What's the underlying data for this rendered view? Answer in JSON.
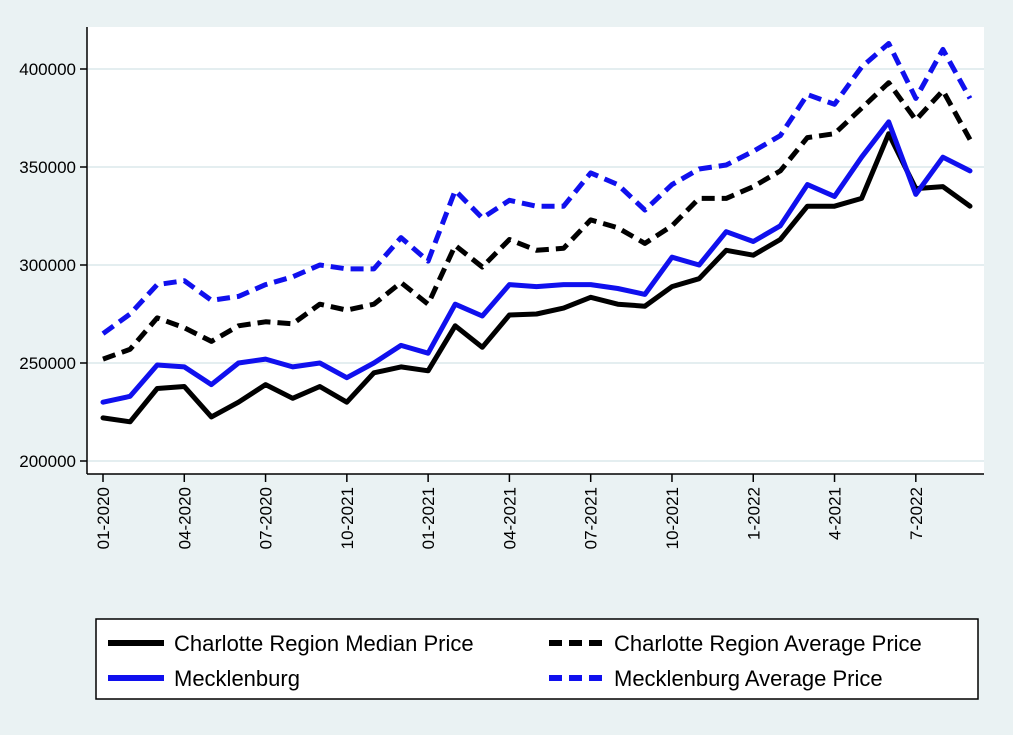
{
  "chart_data": {
    "type": "line",
    "title": "",
    "xlabel": "",
    "ylabel": "",
    "ylim": [
      195000,
      420000
    ],
    "yticks": [
      200000,
      250000,
      300000,
      350000,
      400000
    ],
    "ytick_labels": [
      "200000",
      "250000",
      "300000",
      "350000",
      "400000"
    ],
    "xtick_labels": [
      {
        "index": 0,
        "label": "01-2020"
      },
      {
        "index": 3,
        "label": "04-2020"
      },
      {
        "index": 6,
        "label": "07-2020"
      },
      {
        "index": 9,
        "label": "10-2021"
      },
      {
        "index": 12,
        "label": "01-2021"
      },
      {
        "index": 15,
        "label": "04-2021"
      },
      {
        "index": 18,
        "label": "07-2021"
      },
      {
        "index": 21,
        "label": "10-2021"
      },
      {
        "index": 24,
        "label": "1-2022"
      },
      {
        "index": 27,
        "label": "4-2021"
      },
      {
        "index": 30,
        "label": "7-2022"
      }
    ],
    "grid": true,
    "legend_position": "bottom",
    "series": [
      {
        "name": "Charlotte Region Median Price",
        "color": "#000000",
        "dash": "solid",
        "values": [
          222000,
          220000,
          237000,
          238000,
          222500,
          230000,
          239000,
          232000,
          238000,
          230000,
          245000,
          248000,
          246000,
          269000,
          258000,
          274500,
          275000,
          278000,
          283500,
          280000,
          279000,
          289000,
          293000,
          307500,
          305000,
          313000,
          330000,
          330000,
          334000,
          367000,
          339000,
          340000,
          330000
        ]
      },
      {
        "name": "Charlotte Region Average Price",
        "color": "#000000",
        "dash": "dashed",
        "values": [
          252000,
          257000,
          273000,
          268000,
          261000,
          269000,
          271000,
          270000,
          280000,
          277000,
          280000,
          291000,
          280000,
          310000,
          299000,
          313000,
          307500,
          308500,
          323000,
          319000,
          311000,
          320000,
          334000,
          334000,
          340000,
          348000,
          365000,
          367000,
          380000,
          393000,
          374000,
          389000,
          364000
        ]
      },
      {
        "name": "Mecklenburg",
        "color": "#1010ee",
        "dash": "solid",
        "values": [
          230000,
          233000,
          249000,
          248000,
          239000,
          250000,
          252000,
          248000,
          250000,
          242500,
          250000,
          259000,
          255000,
          280000,
          274000,
          290000,
          289000,
          290000,
          290000,
          288000,
          285000,
          304000,
          300000,
          317000,
          312000,
          320000,
          341000,
          335000,
          355000,
          373000,
          336000,
          355000,
          348000
        ]
      },
      {
        "name": "Mecklenburg Average Price",
        "color": "#1010ee",
        "dash": "dashed",
        "values": [
          265000,
          275000,
          290000,
          292000,
          282000,
          284000,
          290000,
          294000,
          300000,
          298000,
          298000,
          314000,
          302000,
          338000,
          324000,
          333000,
          330000,
          330000,
          347000,
          341000,
          328000,
          341000,
          349000,
          351000,
          358000,
          366000,
          387000,
          382000,
          401000,
          413000,
          385000,
          410000,
          385000
        ]
      }
    ]
  },
  "colors": {
    "background": "#eaf2f3",
    "plot_background": "#ffffff",
    "grid": "#e4eef0",
    "axis": "#000000"
  }
}
